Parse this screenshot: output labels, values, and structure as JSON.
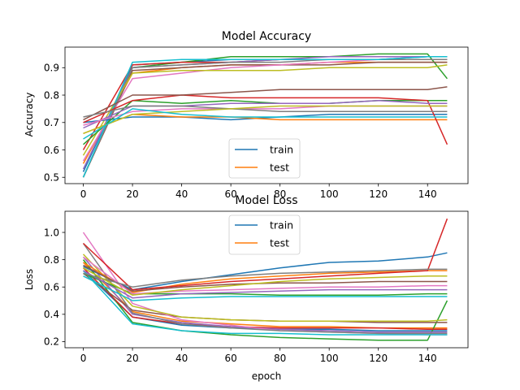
{
  "chart_data": [
    {
      "type": "line",
      "title": "Model Accuracy",
      "xlabel": "",
      "ylabel": "Accuracy",
      "xlim": [
        -7.45,
        156.45
      ],
      "ylim": [
        0.477,
        0.975
      ],
      "x_ticks": [
        0,
        20,
        40,
        60,
        80,
        100,
        120,
        140
      ],
      "y_ticks": [
        0.5,
        0.6,
        0.7,
        0.8,
        0.9
      ],
      "legend_position": "lower-center",
      "legend": [
        "train",
        "test"
      ],
      "colors": [
        "#1f77b4",
        "#ff7f0e",
        "#2ca02c",
        "#d62728",
        "#9467bd",
        "#8c564b",
        "#e377c2",
        "#7f7f7f",
        "#bcbd22",
        "#17becf"
      ],
      "x": [
        0,
        20,
        40,
        60,
        80,
        100,
        120,
        140,
        148
      ],
      "series": [
        {
          "values": [
            0.52,
            0.91,
            0.92,
            0.93,
            0.93,
            0.93,
            0.93,
            0.94,
            0.94
          ]
        },
        {
          "values": [
            0.55,
            0.88,
            0.9,
            0.91,
            0.91,
            0.92,
            0.92,
            0.92,
            0.92
          ]
        },
        {
          "values": [
            0.5,
            0.9,
            0.92,
            0.94,
            0.94,
            0.94,
            0.95,
            0.95,
            0.86
          ]
        },
        {
          "values": [
            0.6,
            0.91,
            0.92,
            0.92,
            0.93,
            0.93,
            0.93,
            0.93,
            0.93
          ]
        },
        {
          "values": [
            0.53,
            0.9,
            0.91,
            0.92,
            0.93,
            0.94,
            0.94,
            0.94,
            0.94
          ]
        },
        {
          "values": [
            0.5,
            0.89,
            0.9,
            0.91,
            0.91,
            0.91,
            0.92,
            0.92,
            0.92
          ]
        },
        {
          "values": [
            0.56,
            0.86,
            0.88,
            0.9,
            0.91,
            0.92,
            0.93,
            0.93,
            0.93
          ]
        },
        {
          "values": [
            0.5,
            0.9,
            0.91,
            0.92,
            0.92,
            0.93,
            0.93,
            0.93,
            0.93
          ]
        },
        {
          "values": [
            0.58,
            0.88,
            0.89,
            0.89,
            0.89,
            0.9,
            0.9,
            0.9,
            0.91
          ]
        },
        {
          "values": [
            0.5,
            0.92,
            0.93,
            0.93,
            0.93,
            0.93,
            0.93,
            0.94,
            0.94
          ]
        },
        {
          "values": [
            0.7,
            0.72,
            0.72,
            0.71,
            0.72,
            0.73,
            0.73,
            0.73,
            0.73
          ]
        },
        {
          "values": [
            0.66,
            0.73,
            0.72,
            0.72,
            0.71,
            0.71,
            0.71,
            0.71,
            0.71
          ]
        },
        {
          "values": [
            0.62,
            0.78,
            0.77,
            0.78,
            0.77,
            0.77,
            0.78,
            0.78,
            0.78
          ]
        },
        {
          "values": [
            0.7,
            0.78,
            0.8,
            0.79,
            0.79,
            0.79,
            0.79,
            0.78,
            0.62
          ]
        },
        {
          "values": [
            0.68,
            0.76,
            0.76,
            0.77,
            0.77,
            0.77,
            0.78,
            0.77,
            0.77
          ]
        },
        {
          "values": [
            0.71,
            0.8,
            0.8,
            0.81,
            0.82,
            0.82,
            0.82,
            0.82,
            0.83
          ]
        },
        {
          "values": [
            0.69,
            0.74,
            0.75,
            0.75,
            0.75,
            0.76,
            0.76,
            0.76,
            0.76
          ]
        },
        {
          "values": [
            0.72,
            0.76,
            0.76,
            0.75,
            0.74,
            0.74,
            0.74,
            0.74,
            0.74
          ]
        },
        {
          "values": [
            0.66,
            0.73,
            0.74,
            0.75,
            0.76,
            0.76,
            0.76,
            0.76,
            0.76
          ]
        },
        {
          "values": [
            0.64,
            0.75,
            0.73,
            0.72,
            0.72,
            0.72,
            0.72,
            0.72,
            0.72
          ]
        }
      ]
    },
    {
      "type": "line",
      "title": "Model Loss",
      "xlabel": "epoch",
      "ylabel": "Loss",
      "xlim": [
        -7.45,
        156.45
      ],
      "ylim": [
        0.155,
        1.155
      ],
      "x_ticks": [
        0,
        20,
        40,
        60,
        80,
        100,
        120,
        140
      ],
      "y_ticks": [
        0.2,
        0.4,
        0.6,
        0.8,
        1.0
      ],
      "legend_position": "upper-center",
      "legend": [
        "train",
        "test"
      ],
      "colors": [
        "#1f77b4",
        "#ff7f0e",
        "#2ca02c",
        "#d62728",
        "#9467bd",
        "#8c564b",
        "#e377c2",
        "#7f7f7f",
        "#bcbd22",
        "#17becf"
      ],
      "x": [
        0,
        20,
        40,
        60,
        80,
        100,
        120,
        140,
        148
      ],
      "series": [
        {
          "values": [
            0.72,
            0.38,
            0.32,
            0.3,
            0.29,
            0.29,
            0.28,
            0.28,
            0.28
          ]
        },
        {
          "values": [
            0.78,
            0.42,
            0.35,
            0.33,
            0.31,
            0.31,
            0.3,
            0.3,
            0.3
          ]
        },
        {
          "values": [
            0.8,
            0.34,
            0.28,
            0.25,
            0.23,
            0.22,
            0.21,
            0.21,
            0.5
          ]
        },
        {
          "values": [
            0.74,
            0.38,
            0.33,
            0.31,
            0.3,
            0.3,
            0.3,
            0.29,
            0.29
          ]
        },
        {
          "values": [
            0.82,
            0.4,
            0.34,
            0.31,
            0.29,
            0.28,
            0.27,
            0.27,
            0.27
          ]
        },
        {
          "values": [
            0.7,
            0.43,
            0.38,
            0.36,
            0.35,
            0.35,
            0.34,
            0.34,
            0.34
          ]
        },
        {
          "values": [
            1.0,
            0.48,
            0.36,
            0.32,
            0.28,
            0.27,
            0.26,
            0.25,
            0.25
          ]
        },
        {
          "values": [
            0.92,
            0.41,
            0.33,
            0.3,
            0.28,
            0.27,
            0.26,
            0.26,
            0.26
          ]
        },
        {
          "values": [
            0.84,
            0.46,
            0.38,
            0.36,
            0.35,
            0.35,
            0.35,
            0.35,
            0.36
          ]
        },
        {
          "values": [
            0.72,
            0.33,
            0.28,
            0.26,
            0.26,
            0.25,
            0.25,
            0.25,
            0.25
          ]
        },
        {
          "values": [
            0.75,
            0.58,
            0.64,
            0.69,
            0.74,
            0.78,
            0.79,
            0.82,
            0.85
          ]
        },
        {
          "values": [
            0.78,
            0.56,
            0.62,
            0.66,
            0.68,
            0.7,
            0.71,
            0.72,
            0.72
          ]
        },
        {
          "values": [
            0.7,
            0.55,
            0.55,
            0.55,
            0.54,
            0.54,
            0.54,
            0.55,
            0.55
          ]
        },
        {
          "values": [
            0.92,
            0.58,
            0.61,
            0.64,
            0.66,
            0.68,
            0.7,
            0.72,
            1.1
          ]
        },
        {
          "values": [
            0.72,
            0.52,
            0.55,
            0.56,
            0.57,
            0.58,
            0.58,
            0.58,
            0.58
          ]
        },
        {
          "values": [
            0.76,
            0.57,
            0.6,
            0.62,
            0.63,
            0.63,
            0.64,
            0.64,
            0.64
          ]
        },
        {
          "values": [
            0.82,
            0.55,
            0.57,
            0.58,
            0.59,
            0.6,
            0.6,
            0.61,
            0.61
          ]
        },
        {
          "values": [
            0.7,
            0.6,
            0.65,
            0.68,
            0.7,
            0.71,
            0.72,
            0.73,
            0.73
          ]
        },
        {
          "values": [
            0.74,
            0.54,
            0.58,
            0.61,
            0.64,
            0.66,
            0.67,
            0.68,
            0.68
          ]
        },
        {
          "values": [
            0.68,
            0.5,
            0.52,
            0.53,
            0.53,
            0.53,
            0.53,
            0.53,
            0.53
          ]
        }
      ]
    }
  ]
}
